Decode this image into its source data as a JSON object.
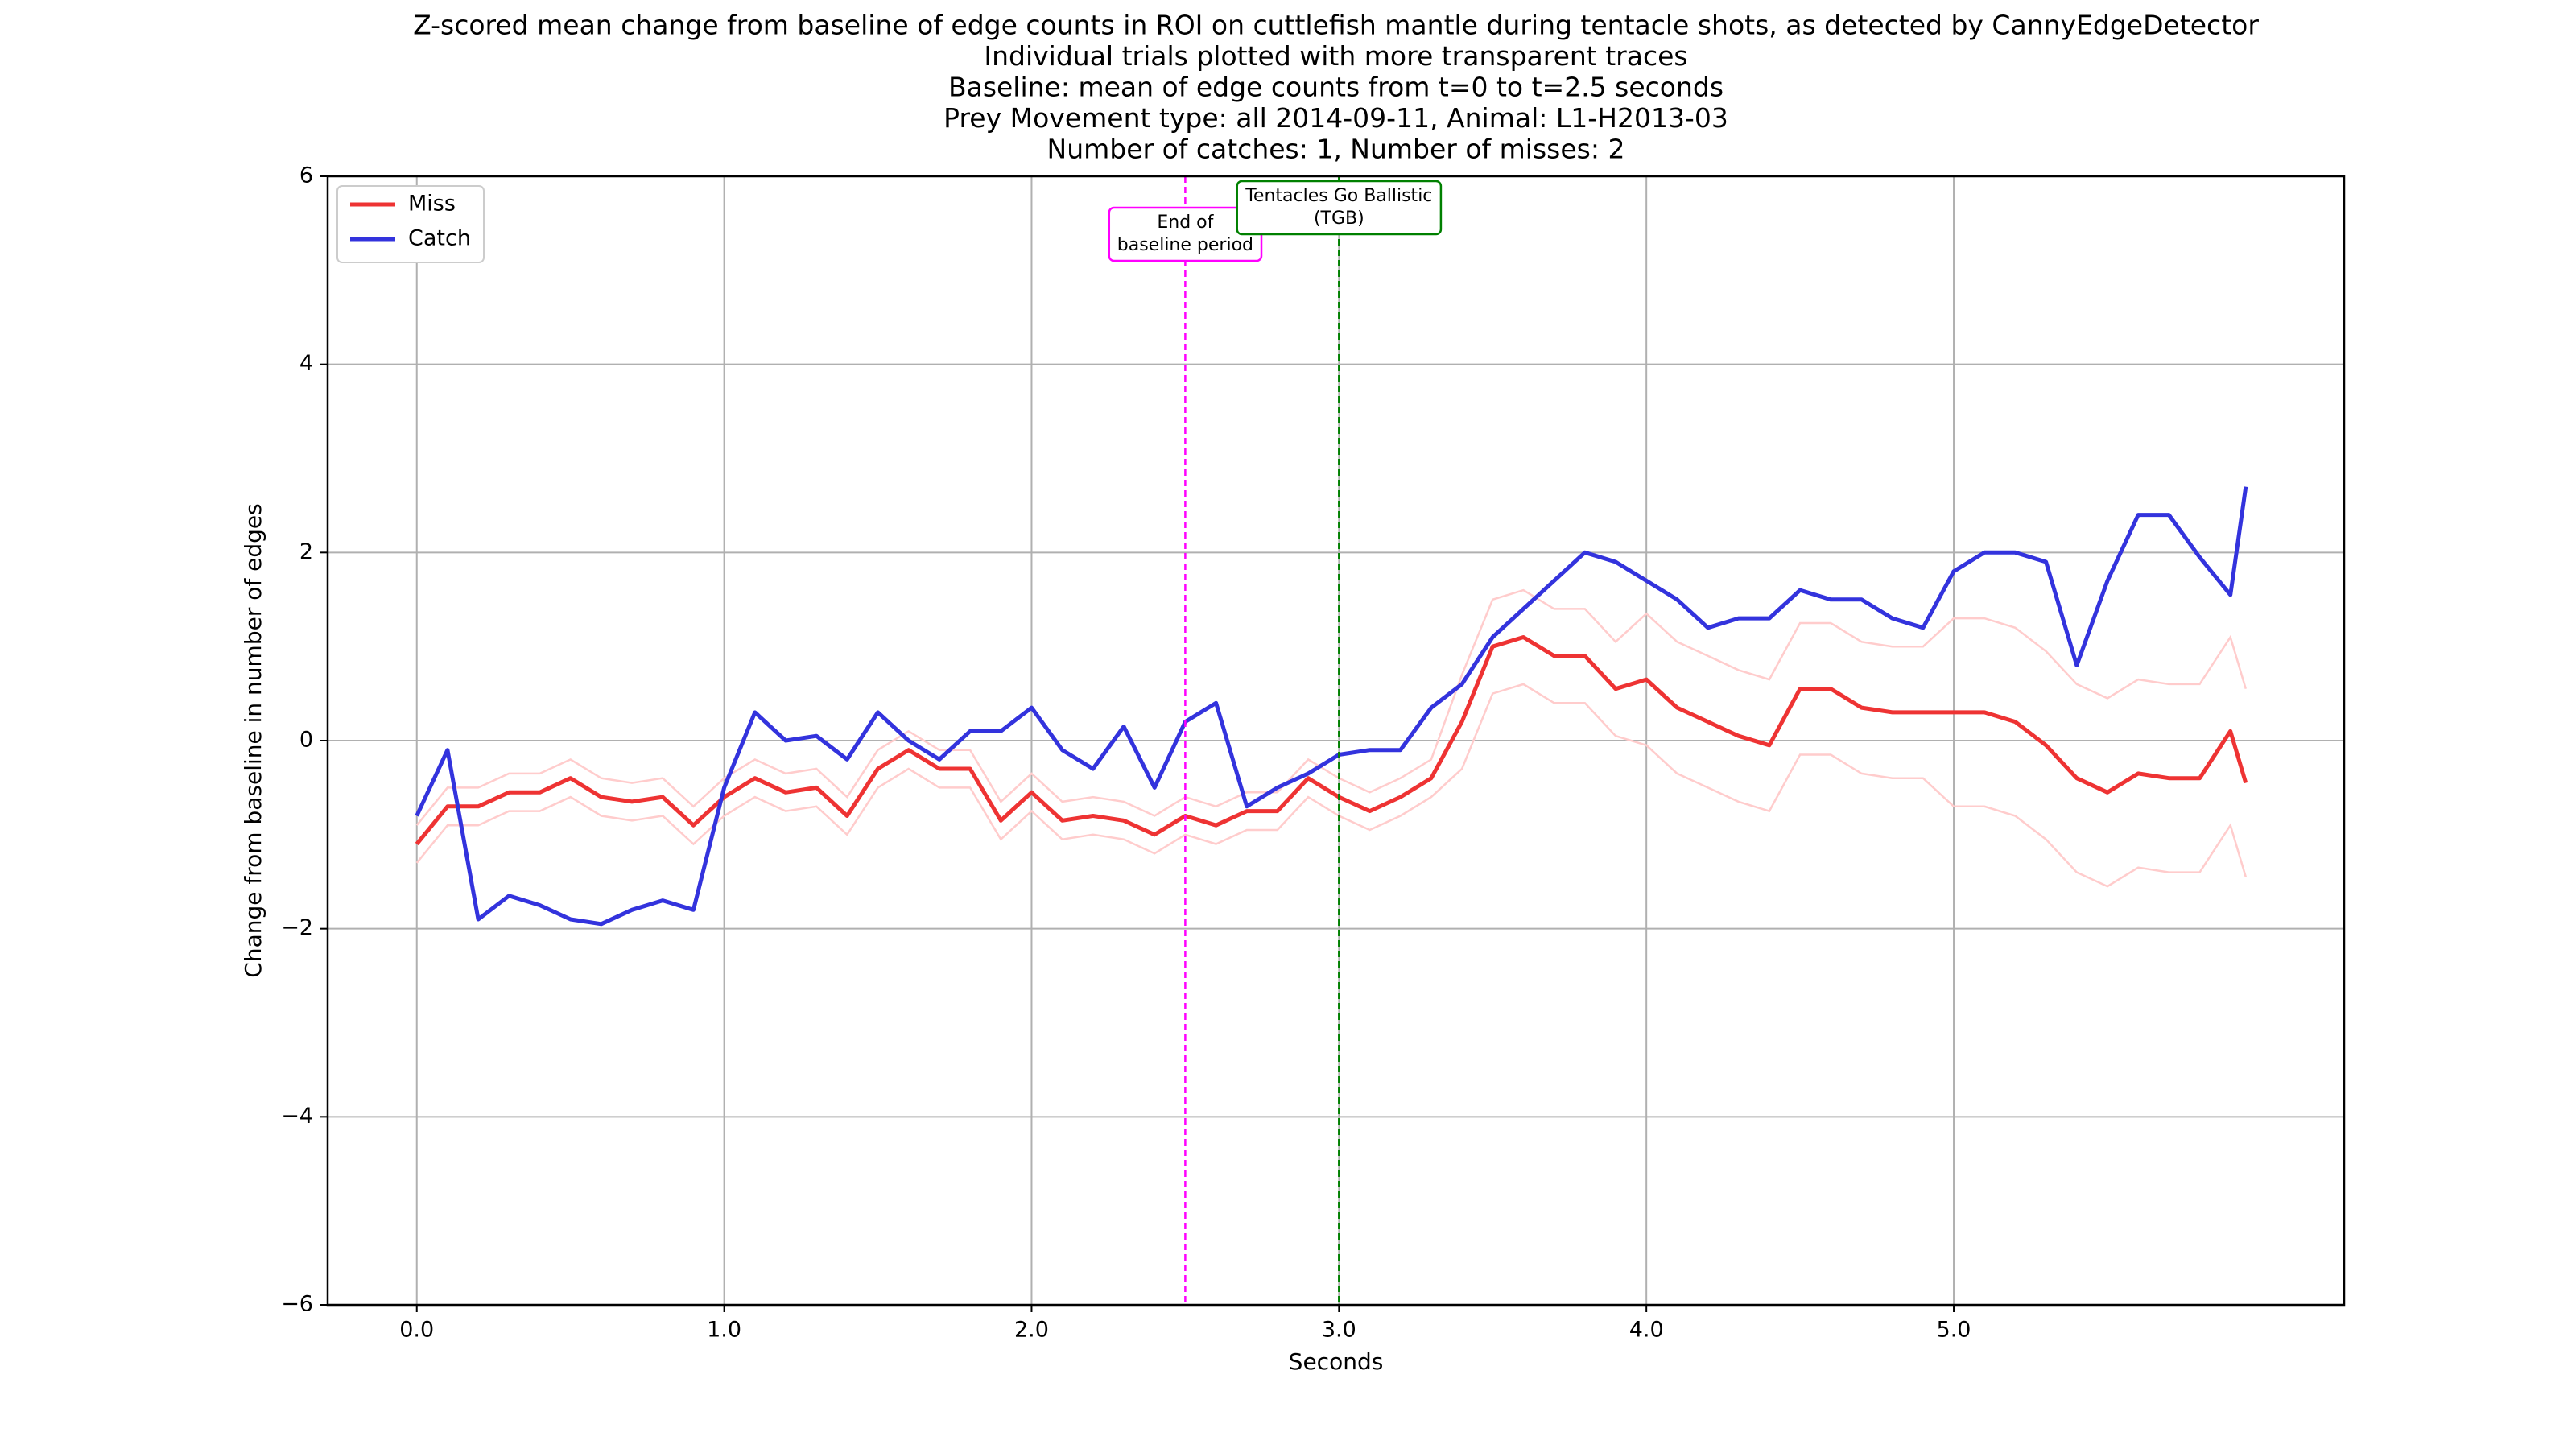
{
  "chart_data": {
    "type": "line",
    "title": [
      "Z-scored mean change from baseline of edge counts in ROI on cuttlefish mantle during tentacle shots, as detected by CannyEdgeDetector",
      "Individual trials plotted with more transparent traces",
      "Baseline: mean of edge counts from t=0 to t=2.5 seconds",
      "Prey Movement type: all 2014-09-11, Animal: L1-H2013-03",
      "Number of catches: 1, Number of misses: 2"
    ],
    "xlabel": "Seconds",
    "ylabel": "Change from baseline in number of edges",
    "x": [
      0,
      0.1,
      0.2,
      0.3,
      0.4,
      0.5,
      0.6,
      0.7,
      0.8,
      0.9,
      1.0,
      1.1,
      1.2,
      1.3,
      1.4,
      1.5,
      1.6,
      1.7,
      1.8,
      1.9,
      2.0,
      2.1,
      2.2,
      2.3,
      2.4,
      2.5,
      2.6,
      2.7,
      2.8,
      2.9,
      3.0,
      3.1,
      3.2,
      3.3,
      3.4,
      3.5,
      3.6,
      3.7,
      3.8,
      3.9,
      4.0,
      4.1,
      4.2,
      4.3,
      4.4,
      4.5,
      4.6,
      4.7,
      4.8,
      4.9,
      5.0,
      5.1,
      5.2,
      5.3,
      5.4,
      5.5,
      5.6,
      5.7,
      5.8,
      5.9,
      5.95
    ],
    "series": [
      {
        "name": "Miss",
        "color": "#ee3333",
        "values": [
          -1.1,
          -0.7,
          -0.7,
          -0.55,
          -0.55,
          -0.4,
          -0.6,
          -0.65,
          -0.6,
          -0.9,
          -0.6,
          -0.4,
          -0.55,
          -0.5,
          -0.8,
          -0.3,
          -0.1,
          -0.3,
          -0.3,
          -0.85,
          -0.55,
          -0.85,
          -0.8,
          -0.85,
          -1.0,
          -0.8,
          -0.9,
          -0.75,
          -0.75,
          -0.4,
          -0.6,
          -0.75,
          -0.6,
          -0.4,
          0.2,
          1.0,
          1.1,
          0.9,
          0.9,
          0.55,
          0.65,
          0.35,
          0.2,
          0.05,
          -0.05,
          0.55,
          0.55,
          0.35,
          0.3,
          0.3,
          0.3,
          0.3,
          0.2,
          -0.05,
          -0.4,
          -0.55,
          -0.35,
          -0.4,
          -0.4,
          0.1,
          -0.45
        ]
      },
      {
        "name": "Catch",
        "color": "#3333dd",
        "values": [
          -0.8,
          -0.1,
          -1.9,
          -1.65,
          -1.75,
          -1.9,
          -1.95,
          -1.8,
          -1.7,
          -1.8,
          -0.5,
          0.3,
          0.0,
          0.05,
          -0.2,
          0.3,
          0.0,
          -0.2,
          0.1,
          0.1,
          0.35,
          -0.1,
          -0.3,
          0.15,
          -0.5,
          0.2,
          0.4,
          -0.7,
          -0.5,
          -0.35,
          -0.15,
          -0.1,
          -0.1,
          0.35,
          0.6,
          1.1,
          1.4,
          1.7,
          2.0,
          1.9,
          1.7,
          1.5,
          1.2,
          1.3,
          1.3,
          1.6,
          1.5,
          1.5,
          1.3,
          1.2,
          1.8,
          2.0,
          2.0,
          1.9,
          0.8,
          1.7,
          2.4,
          2.4,
          1.95,
          1.55,
          2.7
        ]
      }
    ],
    "trials": [
      {
        "color": "#ffcccc",
        "values": [
          -0.9,
          -0.5,
          -0.5,
          -0.35,
          -0.35,
          -0.2,
          -0.4,
          -0.45,
          -0.4,
          -0.7,
          -0.4,
          -0.2,
          -0.35,
          -0.3,
          -0.6,
          -0.1,
          0.1,
          -0.1,
          -0.1,
          -0.65,
          -0.35,
          -0.65,
          -0.6,
          -0.65,
          -0.8,
          -0.6,
          -0.7,
          -0.55,
          -0.55,
          -0.2,
          -0.4,
          -0.55,
          -0.4,
          -0.2,
          0.7,
          1.5,
          1.6,
          1.4,
          1.4,
          1.05,
          1.35,
          1.05,
          0.9,
          0.75,
          0.65,
          1.25,
          1.25,
          1.05,
          1.0,
          1.0,
          1.3,
          1.3,
          1.2,
          0.95,
          0.6,
          0.45,
          0.65,
          0.6,
          0.6,
          1.1,
          0.55
        ]
      },
      {
        "color": "#ffcccc",
        "values": [
          -1.3,
          -0.9,
          -0.9,
          -0.75,
          -0.75,
          -0.6,
          -0.8,
          -0.85,
          -0.8,
          -1.1,
          -0.8,
          -0.6,
          -0.75,
          -0.7,
          -1.0,
          -0.5,
          -0.3,
          -0.5,
          -0.5,
          -1.05,
          -0.75,
          -1.05,
          -1.0,
          -1.05,
          -1.2,
          -1.0,
          -1.1,
          -0.95,
          -0.95,
          -0.6,
          -0.8,
          -0.95,
          -0.8,
          -0.6,
          -0.3,
          0.5,
          0.6,
          0.4,
          0.4,
          0.05,
          -0.05,
          -0.35,
          -0.5,
          -0.65,
          -0.75,
          -0.15,
          -0.15,
          -0.35,
          -0.4,
          -0.4,
          -0.7,
          -0.7,
          -0.8,
          -1.05,
          -1.4,
          -1.55,
          -1.35,
          -1.4,
          -1.4,
          -0.9,
          -1.45
        ]
      }
    ],
    "vlines": [
      {
        "x": 2.5,
        "color": "#ff00ff",
        "label": [
          "End of",
          "baseline period"
        ]
      },
      {
        "x": 3.0,
        "color": "#008000",
        "label": [
          "Tentacles Go Ballistic",
          "(TGB)"
        ]
      }
    ],
    "xlim": [
      -0.29,
      6.27
    ],
    "ylim": [
      -6,
      6
    ],
    "xticks": [
      {
        "value": 0,
        "label": "0.0"
      },
      {
        "value": 1,
        "label": "1.0"
      },
      {
        "value": 2,
        "label": "2.0"
      },
      {
        "value": 3,
        "label": "3.0"
      },
      {
        "value": 4,
        "label": "4.0"
      },
      {
        "value": 5,
        "label": "5.0"
      }
    ],
    "yticks": [
      {
        "value": -6,
        "label": "−6"
      },
      {
        "value": -4,
        "label": "−4"
      },
      {
        "value": -2,
        "label": "−2"
      },
      0,
      2,
      4,
      6
    ],
    "grid": true,
    "legend": "upper left"
  }
}
